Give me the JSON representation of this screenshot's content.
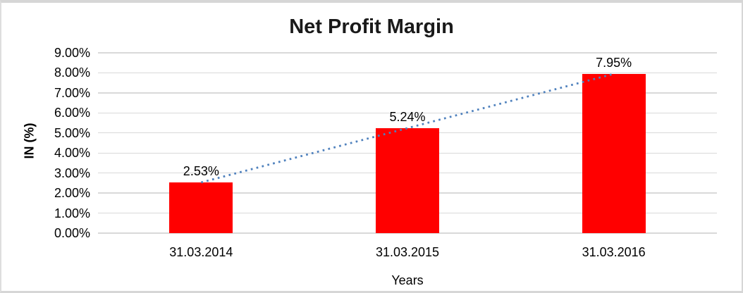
{
  "chart_data": {
    "type": "bar",
    "title": "Net Profit Margin",
    "xlabel": "Years",
    "ylabel": "IN (%)",
    "categories": [
      "31.03.2014",
      "31.03.2015",
      "31.03.2016"
    ],
    "values": [
      2.53,
      5.24,
      7.95
    ],
    "data_labels": [
      "2.53%",
      "5.24%",
      "7.95%"
    ],
    "yticks": [
      "0.00%",
      "1.00%",
      "2.00%",
      "3.00%",
      "4.00%",
      "5.00%",
      "6.00%",
      "7.00%",
      "8.00%",
      "9.00%"
    ],
    "ylim": [
      0,
      9
    ],
    "grid": true,
    "legend": "none",
    "bar_color": "#ff0000",
    "gridline_color": "#d9d9d9",
    "trendline": {
      "type": "linear",
      "style": "dotted",
      "color": "#4f81bd",
      "from_value": 2.53,
      "to_value": 7.95
    }
  }
}
